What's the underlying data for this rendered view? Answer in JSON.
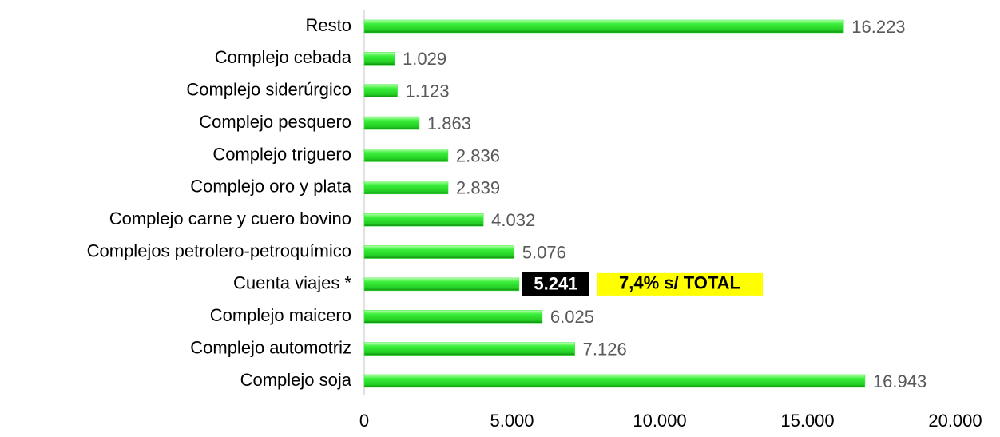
{
  "chart_data": {
    "type": "bar",
    "orientation": "horizontal",
    "categories": [
      "Resto",
      "Complejo cebada",
      "Complejo siderúrgico",
      "Complejo pesquero",
      "Complejo triguero",
      "Complejo oro y plata",
      "Complejo carne y cuero bovino",
      "Complejos petrolero-petroquímico",
      "Cuenta viajes *",
      "Complejo maicero",
      "Complejo automotriz",
      "Complejo soja"
    ],
    "values": [
      16223,
      1029,
      1123,
      1863,
      2836,
      2839,
      4032,
      5076,
      5241,
      6025,
      7126,
      16943
    ],
    "value_labels": [
      "16.223",
      "1.029",
      "1.123",
      "1.863",
      "2.836",
      "2.839",
      "4.032",
      "5.076",
      "5.241",
      "6.025",
      "7.126",
      "16.943"
    ],
    "color": "#33ee33",
    "highlight_category": 8,
    "annotation": {
      "text": "7,4% s/ TOTAL",
      "color": "#ffff00"
    },
    "xlim": [
      0,
      20000
    ],
    "xticks": [
      0,
      {
        "value": 5000,
        "label": "5.000"
      },
      {
        "value": 10000,
        "label": "10.000"
      },
      {
        "value": 15000,
        "label": "15.000"
      },
      {
        "value": 20000,
        "label": "20.000"
      }
    ],
    "grid": false
  }
}
